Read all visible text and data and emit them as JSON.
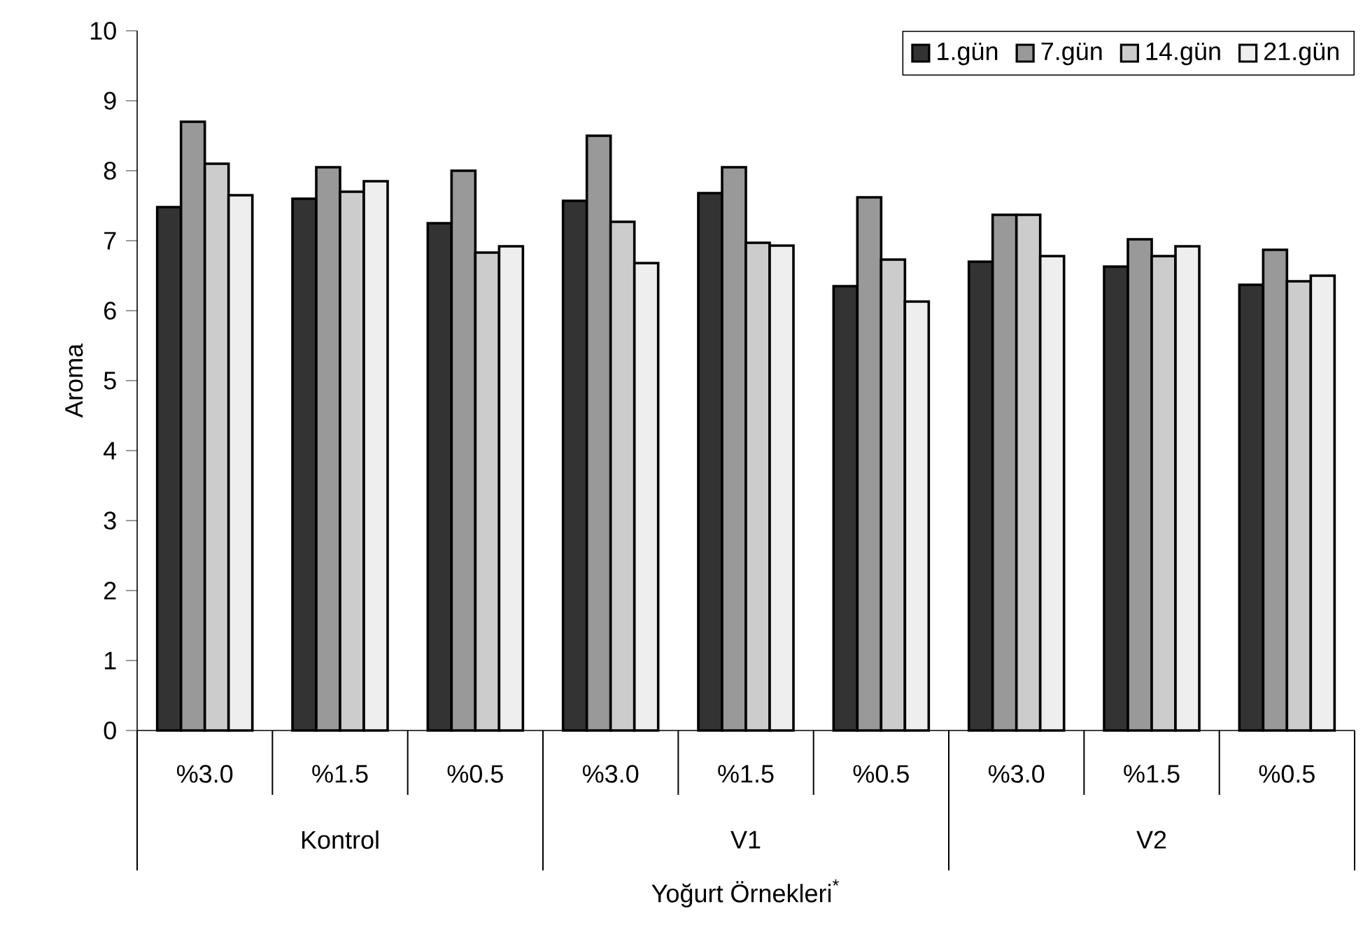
{
  "chart_data": {
    "type": "bar",
    "xlabel": "Yoğurt Örnekleri$^{*}$",
    "ylabel": "Aroma",
    "categories": [
      "%3.0",
      "%1.5",
      "%0.5",
      "%3.0",
      "%1.5",
      "%0.5",
      "%3.0",
      "%1.5",
      "%0.5"
    ],
    "annotations": [
      "Kontrol",
      "V1",
      "V2"
    ],
    "series": [
      {
        "name": "1.gün",
        "color": "#333333",
        "values": [
          7.48,
          7.6,
          7.25,
          7.57,
          7.68,
          6.35,
          6.7,
          6.63,
          6.37
        ]
      },
      {
        "name": "7.gün",
        "color": "#999999",
        "values": [
          8.7,
          8.05,
          8.0,
          8.5,
          8.05,
          7.62,
          7.37,
          7.02,
          6.87
        ]
      },
      {
        "name": "14.gün",
        "color": "#cccccc",
        "values": [
          8.1,
          7.7,
          6.83,
          7.27,
          6.97,
          6.73,
          7.37,
          6.78,
          6.42
        ]
      },
      {
        "name": "21.gün",
        "color": "#eeeeee",
        "values": [
          7.65,
          7.85,
          6.92,
          6.68,
          6.93,
          6.13,
          6.78,
          6.92,
          6.5
        ]
      }
    ],
    "ylim": [
      0,
      10
    ],
    "yticks": [
      0,
      1,
      2,
      3,
      4,
      5,
      6,
      7,
      8,
      9,
      10
    ],
    "grid": false,
    "legend": "top right"
  }
}
